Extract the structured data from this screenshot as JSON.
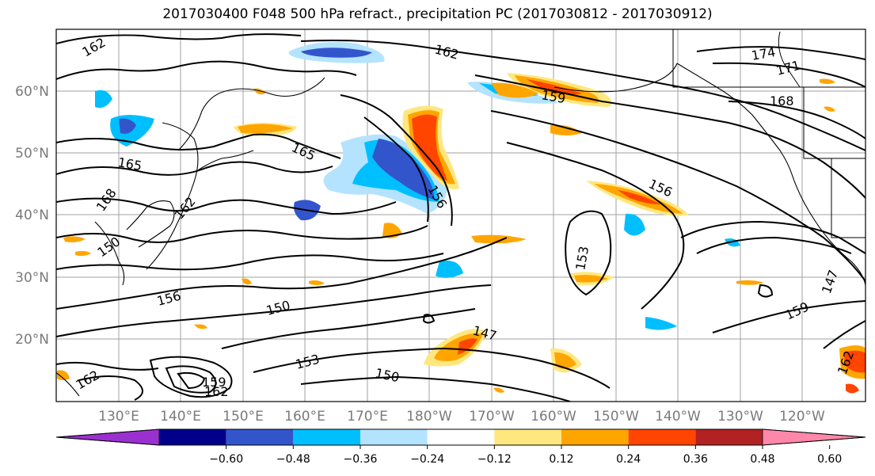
{
  "title": "2017030400 F048 500 hPa refract., precipitation PC (2017030812 - 2017030912)",
  "map": {
    "lat_labels": [
      "60°N",
      "50°N",
      "40°N",
      "30°N",
      "20°N"
    ],
    "lon_labels": [
      "130°E",
      "140°E",
      "150°E",
      "160°E",
      "170°E",
      "180°W",
      "170°W",
      "160°W",
      "150°W",
      "140°W",
      "130°W",
      "120°W"
    ],
    "contour_labels": [
      "162",
      "162",
      "174",
      "171",
      "168",
      "159",
      "165",
      "165",
      "168",
      "162",
      "156",
      "156",
      "153",
      "150",
      "156",
      "150",
      "153",
      "147",
      "150",
      "159",
      "147",
      "162",
      "159"
    ]
  },
  "colorbar": {
    "colors": [
      "#9b30d0",
      "#00008b",
      "#3355cc",
      "#00bfff",
      "#b3e3ff",
      "#ffffff",
      "#ffe780",
      "#ffa500",
      "#ff4500",
      "#b22222",
      "#ff88aa"
    ],
    "ticks": [
      "−0.60",
      "−0.48",
      "−0.36",
      "−0.24",
      "−0.12",
      "0.12",
      "0.24",
      "0.36",
      "0.48",
      "0.60"
    ]
  }
}
